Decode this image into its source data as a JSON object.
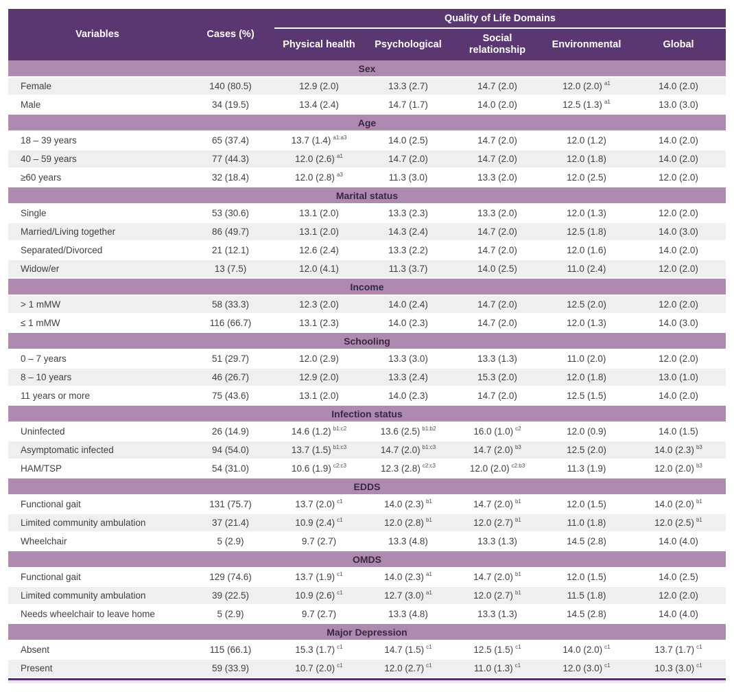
{
  "table": {
    "title_group": "Quality of Life Domains",
    "col_variables": "Variables",
    "col_cases": "Cases (%)",
    "domain_columns": [
      "Physical health",
      "Psychological",
      "Social relationship",
      "Environmental",
      "Global"
    ],
    "colors": {
      "header_purple": "#5b3772",
      "section_band": "#af8ab0",
      "shaded_row": "#efeef0",
      "bottom_rule": "#54306a",
      "body_text": "#3f3f3f"
    },
    "sections": [
      {
        "label": "Sex",
        "rows": [
          {
            "label": "Female",
            "cases": "140 (80.5)",
            "cells": [
              {
                "v": "12.9 (2.0)"
              },
              {
                "v": "13.3 (2.7)"
              },
              {
                "v": "14.7 (2.0)"
              },
              {
                "v": "12.0 (2.0)",
                "s": "a1"
              },
              {
                "v": "14.0 (2.0)"
              }
            ]
          },
          {
            "label": "Male",
            "cases": "34 (19.5)",
            "cells": [
              {
                "v": "13.4 (2.4)"
              },
              {
                "v": "14.7 (1.7)"
              },
              {
                "v": "14.0 (2.0)"
              },
              {
                "v": "12.5 (1.3)",
                "s": "a1"
              },
              {
                "v": "13.0 (3.0)"
              }
            ]
          }
        ]
      },
      {
        "label": "Age",
        "rows": [
          {
            "label": "18 – 39 years",
            "cases": "65 (37.4)",
            "cells": [
              {
                "v": "13.7 (1.4)",
                "s": "a1:a3"
              },
              {
                "v": "14.0 (2.5)"
              },
              {
                "v": "14.7 (2.0)"
              },
              {
                "v": "12.0 (1.2)"
              },
              {
                "v": "14.0 (2.0)"
              }
            ]
          },
          {
            "label": "40 – 59 years",
            "cases": "77 (44.3)",
            "cells": [
              {
                "v": "12.0 (2.6)",
                "s": "a1"
              },
              {
                "v": "14.7 (2.0)"
              },
              {
                "v": "14.7 (2.0)"
              },
              {
                "v": "12.0 (1.8)"
              },
              {
                "v": "14.0 (2.0)"
              }
            ]
          },
          {
            "label": "≥60 years",
            "cases": "32 (18.4)",
            "cells": [
              {
                "v": "12.0 (2.8)",
                "s": "a3"
              },
              {
                "v": "11.3 (3.0)"
              },
              {
                "v": "13.3 (2.0)"
              },
              {
                "v": "12.0 (2.5)"
              },
              {
                "v": "12.0 (2.0)"
              }
            ]
          }
        ]
      },
      {
        "label": "Marital status",
        "rows": [
          {
            "label": "Single",
            "cases": "53 (30.6)",
            "cells": [
              {
                "v": "13.1 (2.0)"
              },
              {
                "v": "13.3 (2.3)"
              },
              {
                "v": "13.3 (2.0)"
              },
              {
                "v": "12.0 (1.3)"
              },
              {
                "v": "12.0 (2.0)"
              }
            ]
          },
          {
            "label": "Married/Living together",
            "cases": "86 (49.7)",
            "cells": [
              {
                "v": "13.1 (2.0)"
              },
              {
                "v": "14.3 (2.4)"
              },
              {
                "v": "14.7 (2.0)"
              },
              {
                "v": "12.5 (1.8)"
              },
              {
                "v": "14.0 (3.0)"
              }
            ]
          },
          {
            "label": "Separated/Divorced",
            "cases": "21 (12.1)",
            "cells": [
              {
                "v": "12.6 (2.4)"
              },
              {
                "v": "13.3 (2.2)"
              },
              {
                "v": "14.7 (2.0)"
              },
              {
                "v": "12.0 (1.6)"
              },
              {
                "v": "14.0 (2.0)"
              }
            ]
          },
          {
            "label": "Widow/er",
            "cases": "13 (7.5)",
            "cells": [
              {
                "v": "12.0 (4.1)"
              },
              {
                "v": "11.3 (3.7)"
              },
              {
                "v": "14.0 (2.5)"
              },
              {
                "v": "11.0 (2.4)"
              },
              {
                "v": "12.0 (2.0)"
              }
            ]
          }
        ]
      },
      {
        "label": "Income",
        "rows": [
          {
            "label": "> 1 mMW",
            "cases": "58 (33.3)",
            "cells": [
              {
                "v": "12.3 (2.0)"
              },
              {
                "v": "14.0 (2.4)"
              },
              {
                "v": "14.7 (2.0)"
              },
              {
                "v": "12.5 (2.0)"
              },
              {
                "v": "12.0 (2.0)"
              }
            ]
          },
          {
            "label": "≤ 1 mMW",
            "cases": "116 (66.7)",
            "cells": [
              {
                "v": "13.1 (2.3)"
              },
              {
                "v": "14.0 (2.3)"
              },
              {
                "v": "14.7 (2.0)"
              },
              {
                "v": "12.0 (1.3)"
              },
              {
                "v": "14.0 (3.0)"
              }
            ]
          }
        ]
      },
      {
        "label": "Schooling",
        "rows": [
          {
            "label": "0 – 7 years",
            "cases": "51 (29.7)",
            "cells": [
              {
                "v": "12.0 (2.9)"
              },
              {
                "v": "13.3 (3.0)"
              },
              {
                "v": "13.3 (1.3)"
              },
              {
                "v": "11.0 (2.0)"
              },
              {
                "v": "12.0 (2.0)"
              }
            ]
          },
          {
            "label": "8 – 10 years",
            "cases": "46 (26.7)",
            "cells": [
              {
                "v": "12.9 (2.0)"
              },
              {
                "v": "13.3 (2.4)"
              },
              {
                "v": "15.3 (2.0)"
              },
              {
                "v": "12.0 (1.8)"
              },
              {
                "v": "13.0 (1.0)"
              }
            ]
          },
          {
            "label": "11 years or more",
            "cases": "75 (43.6)",
            "cells": [
              {
                "v": "13.1 (2.0)"
              },
              {
                "v": "14.0 (2.3)"
              },
              {
                "v": "14.7 (2.0)"
              },
              {
                "v": "12.5 (1.5)"
              },
              {
                "v": "14.0 (2.0)"
              }
            ]
          }
        ]
      },
      {
        "label": "Infection status",
        "rows": [
          {
            "label": "Uninfected",
            "cases": "26 (14.9)",
            "cells": [
              {
                "v": "14.6 (1.2)",
                "s": "b1:c2"
              },
              {
                "v": "13.6 (2.5)",
                "s": "b1:b2"
              },
              {
                "v": "16.0 (1.0)",
                "s": "c2"
              },
              {
                "v": "12.0 (0.9)"
              },
              {
                "v": "14.0 (1.5)"
              }
            ]
          },
          {
            "label": "Asymptomatic infected",
            "cases": "94 (54.0)",
            "cells": [
              {
                "v": "13.7 (1.5)",
                "s": "b1:c3"
              },
              {
                "v": "14.7 (2.0)",
                "s": "b1:c3"
              },
              {
                "v": "14.7 (2.0)",
                "s": "b3"
              },
              {
                "v": "12.5 (2.0)"
              },
              {
                "v": "14.0 (2.3)",
                "s": "b3"
              }
            ]
          },
          {
            "label": "HAM/TSP",
            "cases": "54 (31.0)",
            "cells": [
              {
                "v": "10.6 (1.9)",
                "s": "c2:c3"
              },
              {
                "v": "12.3 (2.8)",
                "s": "c2:c3"
              },
              {
                "v": "12.0 (2.0)",
                "s": "c2:b3"
              },
              {
                "v": "11.3 (1.9)"
              },
              {
                "v": "12.0 (2.0)",
                "s": "b3"
              }
            ]
          }
        ]
      },
      {
        "label": "EDDS",
        "rows": [
          {
            "label": "Functional gait",
            "cases": "131 (75.7)",
            "cells": [
              {
                "v": "13.7 (2.0)",
                "s": "c1"
              },
              {
                "v": "14.0 (2.3)",
                "s": "b1"
              },
              {
                "v": "14.7 (2.0)",
                "s": "b1"
              },
              {
                "v": "12.0 (1.5)"
              },
              {
                "v": "14.0 (2.0)",
                "s": "b1"
              }
            ]
          },
          {
            "label": "Limited community ambulation",
            "cases": "37 (21.4)",
            "cells": [
              {
                "v": "10.9 (2.4)",
                "s": "c1"
              },
              {
                "v": "12.0 (2.8)",
                "s": "b1"
              },
              {
                "v": "12.0 (2.7)",
                "s": "b1"
              },
              {
                "v": "11.0 (1.8)"
              },
              {
                "v": "12.0 (2.5)",
                "s": "b1"
              }
            ]
          },
          {
            "label": "Wheelchair",
            "cases": "5 (2.9)",
            "cells": [
              {
                "v": "9.7 (2.7)"
              },
              {
                "v": "13.3 (4.8)"
              },
              {
                "v": "13.3 (1.3)"
              },
              {
                "v": "14.5 (2.8)"
              },
              {
                "v": "14.0 (4.0)"
              }
            ]
          }
        ]
      },
      {
        "label": "OMDS",
        "rows": [
          {
            "label": "Functional gait",
            "cases": "129 (74.6)",
            "cells": [
              {
                "v": "13.7 (1.9)",
                "s": "c1"
              },
              {
                "v": "14.0 (2.3)",
                "s": "a1"
              },
              {
                "v": "14.7 (2.0)",
                "s": "b1"
              },
              {
                "v": "12.0 (1.5)"
              },
              {
                "v": "14.0 (2.5)"
              }
            ]
          },
          {
            "label": "Limited community ambulation",
            "cases": "39 (22.5)",
            "cells": [
              {
                "v": "10.9 (2.6)",
                "s": "c1"
              },
              {
                "v": "12.7 (3.0)",
                "s": "a1"
              },
              {
                "v": "12.0 (2.7)",
                "s": "b1"
              },
              {
                "v": "11.5 (1.8)"
              },
              {
                "v": "12.0 (2.0)"
              }
            ]
          },
          {
            "label": "Needs wheelchair to leave home",
            "cases": "5 (2.9)",
            "cells": [
              {
                "v": "9.7 (2.7)"
              },
              {
                "v": "13.3 (4.8)"
              },
              {
                "v": "13.3 (1.3)"
              },
              {
                "v": "14.5 (2.8)"
              },
              {
                "v": "14.0 (4.0)"
              }
            ]
          }
        ]
      },
      {
        "label": "Major Depression",
        "rows": [
          {
            "label": "Absent",
            "cases": "115 (66.1)",
            "cells": [
              {
                "v": "15.3 (1.7)",
                "s": "c1"
              },
              {
                "v": "14.7 (1.5)",
                "s": "c1"
              },
              {
                "v": "12.5 (1.5)",
                "s": "c1"
              },
              {
                "v": "14.0 (2.0)",
                "s": "c1"
              },
              {
                "v": "13.7 (1.7)",
                "s": "c1"
              }
            ]
          },
          {
            "label": "Present",
            "cases": "59 (33.9)",
            "cells": [
              {
                "v": "10.7 (2.0)",
                "s": "c1"
              },
              {
                "v": "12.0 (2.7)",
                "s": "c1"
              },
              {
                "v": "11.0 (1.3)",
                "s": "c1"
              },
              {
                "v": "12.0 (3.0)",
                "s": "c1"
              },
              {
                "v": "10.3 (3.0)",
                "s": "c1"
              }
            ]
          }
        ]
      }
    ]
  }
}
